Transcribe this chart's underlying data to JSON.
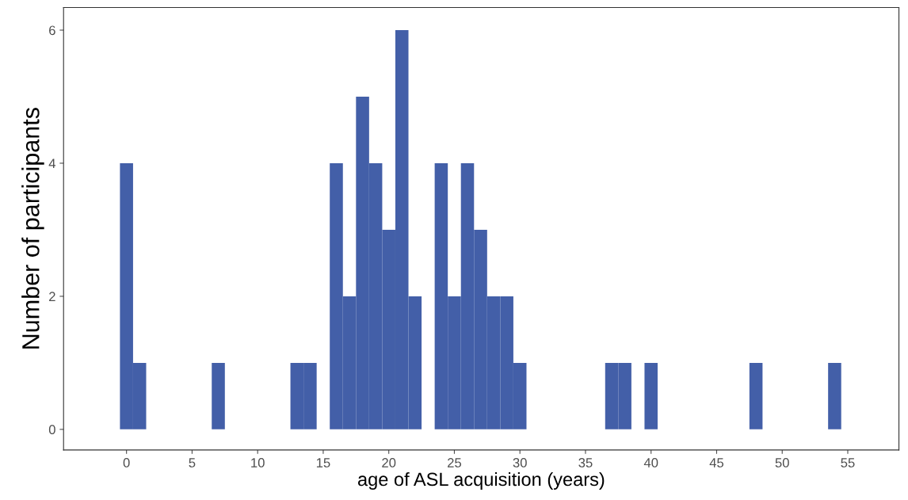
{
  "chart_data": {
    "type": "histogram",
    "xlabel": "age of ASL acquisition (years)",
    "ylabel": "Number of participants",
    "bins": [
      -0.5,
      0.5,
      1.5,
      2.5,
      3.5,
      4.5,
      5.5,
      6.5,
      7.5,
      8.5,
      9.5,
      10.5,
      11.5,
      12.5,
      13.5,
      14.5,
      15.5,
      16.5,
      17.5,
      18.5,
      19.5,
      20.5,
      21.5,
      22.5,
      23.5,
      24.5,
      25.5,
      26.5,
      27.5,
      28.5,
      29.5,
      30.5,
      31.5,
      32.5,
      33.5,
      34.5,
      35.5,
      36.5,
      37.5,
      38.5,
      39.5,
      40.5,
      41.5,
      42.5,
      43.5,
      44.5,
      45.5,
      46.5,
      47.5,
      48.5,
      49.5,
      50.5,
      51.5,
      52.5,
      53.5,
      54.5
    ],
    "values": [
      4,
      1,
      0,
      0,
      0,
      0,
      0,
      1,
      0,
      0,
      0,
      0,
      0,
      1,
      1,
      0,
      4,
      2,
      5,
      4,
      3,
      6,
      2,
      0,
      4,
      2,
      4,
      3,
      2,
      2,
      1,
      0,
      0,
      0,
      0,
      0,
      0,
      1,
      1,
      0,
      1,
      0,
      0,
      0,
      0,
      0,
      0,
      0,
      1,
      0,
      0,
      0,
      0,
      0,
      1
    ],
    "color": "#435fa8",
    "xlim": [
      -4.8,
      58.9
    ],
    "ylim": [
      -0.31,
      6.34
    ],
    "xticks": [
      0,
      5,
      10,
      15,
      20,
      25,
      30,
      35,
      40,
      45,
      50,
      55
    ],
    "yticks": [
      0,
      2,
      4,
      6
    ],
    "grid": false
  }
}
